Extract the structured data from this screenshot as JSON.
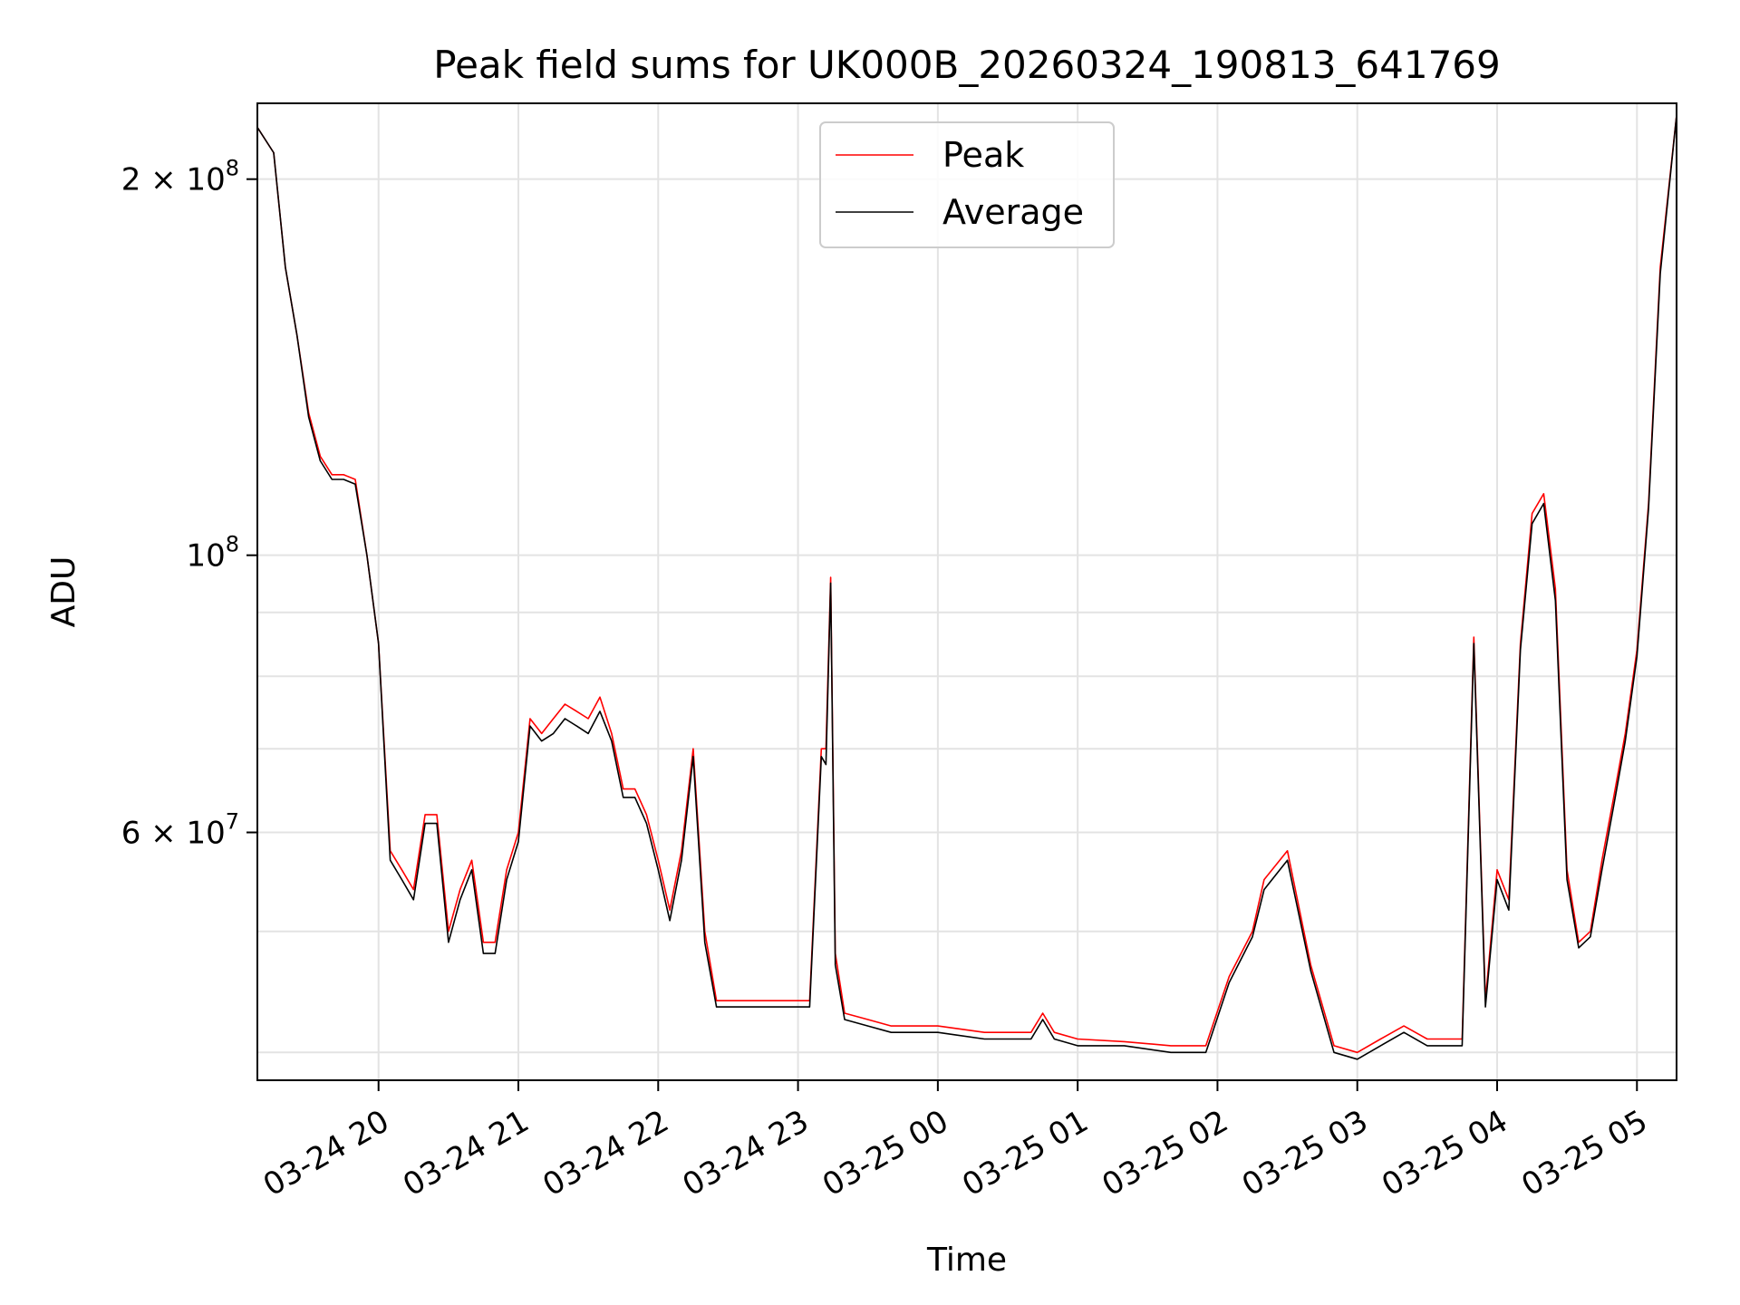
{
  "chart_data": {
    "type": "line",
    "title": "Peak field sums for UK000B_20260324_190813_641769",
    "xlabel": "Time",
    "ylabel": "ADU",
    "y_scale": "log",
    "ylim": [
      38000000,
      230000000
    ],
    "xlim": [
      "2026-03-24 19:08",
      "2026-03-25 05:17"
    ],
    "grid": true,
    "legend_position": "upper-center",
    "x_ticks": [
      {
        "t": "2026-03-24 20:00",
        "label": "03-24 20"
      },
      {
        "t": "2026-03-24 21:00",
        "label": "03-24 21"
      },
      {
        "t": "2026-03-24 22:00",
        "label": "03-24 22"
      },
      {
        "t": "2026-03-24 23:00",
        "label": "03-24 23"
      },
      {
        "t": "2026-03-25 00:00",
        "label": "03-25 00"
      },
      {
        "t": "2026-03-25 01:00",
        "label": "03-25 01"
      },
      {
        "t": "2026-03-25 02:00",
        "label": "03-25 02"
      },
      {
        "t": "2026-03-25 03:00",
        "label": "03-25 03"
      },
      {
        "t": "2026-03-25 04:00",
        "label": "03-25 04"
      },
      {
        "t": "2026-03-25 05:00",
        "label": "03-25 05"
      }
    ],
    "y_ticks_major": [
      {
        "value": 200000000,
        "label": "2 × 10⁸",
        "mant": "2 × 10",
        "exp": "8"
      },
      {
        "value": 100000000,
        "label": "10⁸",
        "mant": "10",
        "exp": "8"
      },
      {
        "value": 60000000,
        "label": "6 × 10⁷",
        "mant": "6 × 10",
        "exp": "7"
      }
    ],
    "y_minor_grid": [
      40000000,
      50000000,
      70000000,
      80000000,
      90000000,
      300000000
    ],
    "series": [
      {
        "name": "Peak",
        "color": "#ff0000",
        "x": [
          "2026-03-24 19:08",
          "2026-03-24 19:15",
          "2026-03-24 19:20",
          "2026-03-24 19:25",
          "2026-03-24 19:30",
          "2026-03-24 19:35",
          "2026-03-24 19:40",
          "2026-03-24 19:45",
          "2026-03-24 19:50",
          "2026-03-24 19:55",
          "2026-03-24 20:00",
          "2026-03-24 20:05",
          "2026-03-24 20:10",
          "2026-03-24 20:15",
          "2026-03-24 20:20",
          "2026-03-24 20:25",
          "2026-03-24 20:30",
          "2026-03-24 20:35",
          "2026-03-24 20:40",
          "2026-03-24 20:45",
          "2026-03-24 20:50",
          "2026-03-24 20:55",
          "2026-03-24 21:00",
          "2026-03-24 21:05",
          "2026-03-24 21:10",
          "2026-03-24 21:15",
          "2026-03-24 21:20",
          "2026-03-24 21:25",
          "2026-03-24 21:30",
          "2026-03-24 21:35",
          "2026-03-24 21:40",
          "2026-03-24 21:45",
          "2026-03-24 21:50",
          "2026-03-24 21:55",
          "2026-03-24 22:00",
          "2026-03-24 22:05",
          "2026-03-24 22:10",
          "2026-03-24 22:15",
          "2026-03-24 22:20",
          "2026-03-24 22:25",
          "2026-03-24 22:30",
          "2026-03-24 22:35",
          "2026-03-24 22:40",
          "2026-03-24 22:45",
          "2026-03-24 22:50",
          "2026-03-24 22:55",
          "2026-03-24 23:05",
          "2026-03-24 23:10",
          "2026-03-24 23:12",
          "2026-03-24 23:14",
          "2026-03-24 23:16",
          "2026-03-24 23:20",
          "2026-03-24 23:30",
          "2026-03-24 23:40",
          "2026-03-24 23:50",
          "2026-03-25 00:00",
          "2026-03-25 00:20",
          "2026-03-25 00:40",
          "2026-03-25 00:45",
          "2026-03-25 00:50",
          "2026-03-25 01:00",
          "2026-03-25 01:20",
          "2026-03-25 01:40",
          "2026-03-25 01:55",
          "2026-03-25 02:05",
          "2026-03-25 02:15",
          "2026-03-25 02:20",
          "2026-03-25 02:30",
          "2026-03-25 02:40",
          "2026-03-25 02:50",
          "2026-03-25 03:00",
          "2026-03-25 03:10",
          "2026-03-25 03:20",
          "2026-03-25 03:30",
          "2026-03-25 03:40",
          "2026-03-25 03:45",
          "2026-03-25 03:50",
          "2026-03-25 03:55",
          "2026-03-25 04:00",
          "2026-03-25 04:05",
          "2026-03-25 04:10",
          "2026-03-25 04:15",
          "2026-03-25 04:20",
          "2026-03-25 04:25",
          "2026-03-25 04:30",
          "2026-03-25 04:35",
          "2026-03-25 04:40",
          "2026-03-25 04:45",
          "2026-03-25 04:50",
          "2026-03-25 04:55",
          "2026-03-25 05:00",
          "2026-03-25 05:05",
          "2026-03-25 05:10",
          "2026-03-25 05:17"
        ],
        "y": [
          220000000,
          210000000,
          170000000,
          150000000,
          130000000,
          120000000,
          116000000,
          116000000,
          115000000,
          100000000,
          85000000,
          58000000,
          56000000,
          54000000,
          62000000,
          62000000,
          50000000,
          54000000,
          57000000,
          49000000,
          49000000,
          56000000,
          60000000,
          74000000,
          72000000,
          74000000,
          76000000,
          75000000,
          74000000,
          77000000,
          72000000,
          65000000,
          65000000,
          62000000,
          57000000,
          52000000,
          58000000,
          70000000,
          50000000,
          44000000,
          44000000,
          44000000,
          44000000,
          44000000,
          44000000,
          44000000,
          44000000,
          70000000,
          70000000,
          96000000,
          48000000,
          43000000,
          42500000,
          42000000,
          42000000,
          42000000,
          41500000,
          41500000,
          43000000,
          41500000,
          41000000,
          40800000,
          40500000,
          40500000,
          46000000,
          50000000,
          55000000,
          58000000,
          47000000,
          40500000,
          40000000,
          41000000,
          42000000,
          41000000,
          41000000,
          41000000,
          86000000,
          44000000,
          56000000,
          53000000,
          85000000,
          108000000,
          112000000,
          94000000,
          56000000,
          49000000,
          50000000,
          57000000,
          64000000,
          72000000,
          84000000,
          110000000,
          170000000,
          225000000
        ]
      },
      {
        "name": "Average",
        "color": "#000000",
        "x": [
          "2026-03-24 19:08",
          "2026-03-24 19:15",
          "2026-03-24 19:20",
          "2026-03-24 19:25",
          "2026-03-24 19:30",
          "2026-03-24 19:35",
          "2026-03-24 19:40",
          "2026-03-24 19:45",
          "2026-03-24 19:50",
          "2026-03-24 19:55",
          "2026-03-24 20:00",
          "2026-03-24 20:05",
          "2026-03-24 20:10",
          "2026-03-24 20:15",
          "2026-03-24 20:20",
          "2026-03-24 20:25",
          "2026-03-24 20:30",
          "2026-03-24 20:35",
          "2026-03-24 20:40",
          "2026-03-24 20:45",
          "2026-03-24 20:50",
          "2026-03-24 20:55",
          "2026-03-24 21:00",
          "2026-03-24 21:05",
          "2026-03-24 21:10",
          "2026-03-24 21:15",
          "2026-03-24 21:20",
          "2026-03-24 21:25",
          "2026-03-24 21:30",
          "2026-03-24 21:35",
          "2026-03-24 21:40",
          "2026-03-24 21:45",
          "2026-03-24 21:50",
          "2026-03-24 21:55",
          "2026-03-24 22:00",
          "2026-03-24 22:05",
          "2026-03-24 22:10",
          "2026-03-24 22:15",
          "2026-03-24 22:20",
          "2026-03-24 22:25",
          "2026-03-24 22:30",
          "2026-03-24 22:35",
          "2026-03-24 22:40",
          "2026-03-24 22:45",
          "2026-03-24 22:50",
          "2026-03-24 22:55",
          "2026-03-24 23:05",
          "2026-03-24 23:10",
          "2026-03-24 23:12",
          "2026-03-24 23:14",
          "2026-03-24 23:16",
          "2026-03-24 23:20",
          "2026-03-24 23:30",
          "2026-03-24 23:40",
          "2026-03-24 23:50",
          "2026-03-25 00:00",
          "2026-03-25 00:20",
          "2026-03-25 00:40",
          "2026-03-25 00:45",
          "2026-03-25 00:50",
          "2026-03-25 01:00",
          "2026-03-25 01:20",
          "2026-03-25 01:40",
          "2026-03-25 01:55",
          "2026-03-25 02:05",
          "2026-03-25 02:15",
          "2026-03-25 02:20",
          "2026-03-25 02:30",
          "2026-03-25 02:40",
          "2026-03-25 02:50",
          "2026-03-25 03:00",
          "2026-03-25 03:10",
          "2026-03-25 03:20",
          "2026-03-25 03:30",
          "2026-03-25 03:40",
          "2026-03-25 03:45",
          "2026-03-25 03:50",
          "2026-03-25 03:55",
          "2026-03-25 04:00",
          "2026-03-25 04:05",
          "2026-03-25 04:10",
          "2026-03-25 04:15",
          "2026-03-25 04:20",
          "2026-03-25 04:25",
          "2026-03-25 04:30",
          "2026-03-25 04:35",
          "2026-03-25 04:40",
          "2026-03-25 04:45",
          "2026-03-25 04:50",
          "2026-03-25 04:55",
          "2026-03-25 05:00",
          "2026-03-25 05:05",
          "2026-03-25 05:10",
          "2026-03-25 05:17"
        ],
        "y": [
          220000000,
          210000000,
          170000000,
          150000000,
          129000000,
          119000000,
          115000000,
          115000000,
          114000000,
          100000000,
          85000000,
          57000000,
          55000000,
          53000000,
          61000000,
          61000000,
          49000000,
          53000000,
          56000000,
          48000000,
          48000000,
          55000000,
          59000000,
          73000000,
          71000000,
          72000000,
          74000000,
          73000000,
          72000000,
          75000000,
          71000000,
          64000000,
          64000000,
          61000000,
          56000000,
          51000000,
          57000000,
          69000000,
          49000000,
          43500000,
          43500000,
          43500000,
          43500000,
          43500000,
          43500000,
          43500000,
          43500000,
          69000000,
          68000000,
          95000000,
          47000000,
          42500000,
          42000000,
          41500000,
          41500000,
          41500000,
          41000000,
          41000000,
          42500000,
          41000000,
          40500000,
          40500000,
          40000000,
          40000000,
          45500000,
          49500000,
          54000000,
          57000000,
          46500000,
          40000000,
          39500000,
          40500000,
          41500000,
          40500000,
          40500000,
          40500000,
          85000000,
          43500000,
          55000000,
          52000000,
          84000000,
          106000000,
          110000000,
          92000000,
          55000000,
          48500000,
          49500000,
          56000000,
          63000000,
          71000000,
          83000000,
          109000000,
          168000000,
          225000000
        ]
      }
    ]
  }
}
